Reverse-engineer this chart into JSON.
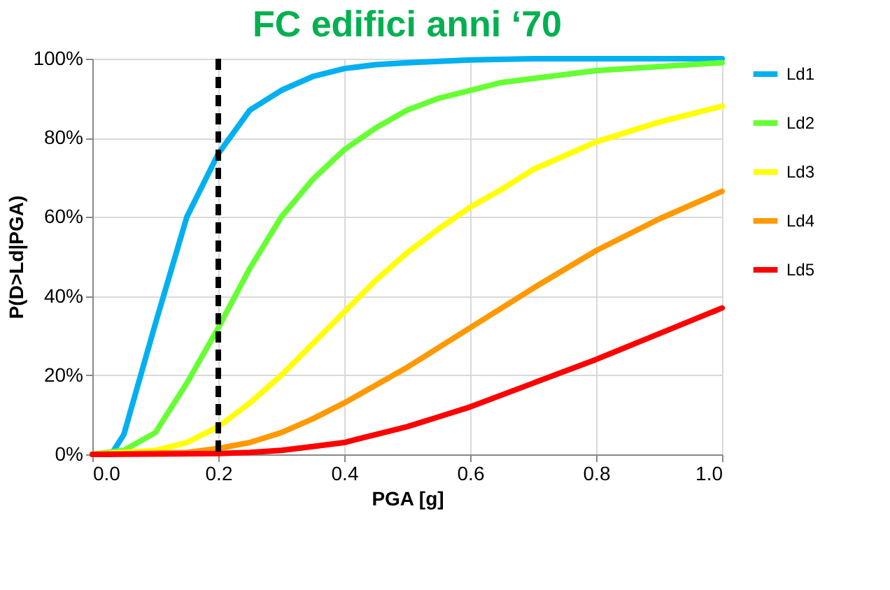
{
  "chart_data": {
    "type": "line",
    "title": "FC edifici anni ‘70",
    "xlabel": "PGA [g]",
    "ylabel": "P(D>Ld|PGA)",
    "xlim": [
      0,
      1
    ],
    "xticks": [
      {
        "value": 0,
        "label": "0.0"
      },
      {
        "value": 0.2,
        "label": "0.2"
      },
      {
        "value": 0.4,
        "label": "0.4"
      },
      {
        "value": 0.6,
        "label": "0.6"
      },
      {
        "value": 0.8,
        "label": "0.8"
      },
      {
        "value": 1,
        "label": "1.0"
      }
    ],
    "ylim": [
      0,
      100
    ],
    "yticks": [
      {
        "value": 0,
        "label": "0%"
      },
      {
        "value": 20,
        "label": "20%"
      },
      {
        "value": 40,
        "label": "40%"
      },
      {
        "value": 60,
        "label": "60%"
      },
      {
        "value": 80,
        "label": "80%"
      },
      {
        "value": 100,
        "label": "100%"
      }
    ],
    "grid": true,
    "legend": "right",
    "marker": "none",
    "line_style": "solid",
    "series": [
      {
        "name": "Ld1",
        "color": "#00b0f0",
        "x": [
          0,
          0.03,
          0.05,
          0.1,
          0.15,
          0.2,
          0.25,
          0.3,
          0.35,
          0.4,
          0.45,
          0.5,
          0.6,
          0.7,
          1.0
        ],
        "values": [
          0,
          0,
          5,
          33,
          60,
          76,
          87,
          92,
          95.5,
          97.5,
          98.5,
          99,
          99.7,
          100,
          100
        ]
      },
      {
        "name": "Ld2",
        "color": "#66ff33",
        "x": [
          0,
          0.05,
          0.1,
          0.15,
          0.2,
          0.25,
          0.3,
          0.35,
          0.4,
          0.45,
          0.5,
          0.55,
          0.6,
          0.65,
          0.7,
          0.8,
          0.9,
          1.0
        ],
        "values": [
          0,
          1,
          5.5,
          18,
          32,
          47,
          60,
          69.5,
          77,
          82.5,
          87,
          90,
          92,
          94,
          95,
          97,
          98,
          99
        ]
      },
      {
        "name": "Ld3",
        "color": "#ffff00",
        "x": [
          0,
          0.1,
          0.15,
          0.2,
          0.25,
          0.3,
          0.35,
          0.4,
          0.45,
          0.5,
          0.55,
          0.6,
          0.65,
          0.7,
          0.8,
          0.9,
          1.0
        ],
        "values": [
          0,
          1,
          3,
          7,
          13,
          20,
          28,
          36,
          44,
          51,
          57,
          62.5,
          67,
          72,
          79,
          84,
          88
        ]
      },
      {
        "name": "Ld4",
        "color": "#ff9900",
        "x": [
          0,
          0.15,
          0.2,
          0.25,
          0.3,
          0.35,
          0.4,
          0.45,
          0.5,
          0.55,
          0.6,
          0.7,
          0.8,
          0.9,
          1.0
        ],
        "values": [
          0,
          0.5,
          1.5,
          3,
          5.5,
          9,
          13,
          17.5,
          22,
          27,
          32,
          42,
          51.5,
          59.5,
          66.5
        ]
      },
      {
        "name": "Ld5",
        "color": "#ff0000",
        "x": [
          0,
          0.2,
          0.25,
          0.3,
          0.35,
          0.4,
          0.45,
          0.5,
          0.55,
          0.6,
          0.7,
          0.8,
          0.9,
          1.0
        ],
        "values": [
          0,
          0.2,
          0.5,
          1,
          2,
          3,
          5,
          7,
          9.5,
          12,
          18,
          24,
          30.5,
          37
        ]
      }
    ],
    "ref_lines": [
      {
        "axis": "x",
        "value": 0.2,
        "color": "#000000",
        "line_style": "dashed"
      }
    ]
  }
}
